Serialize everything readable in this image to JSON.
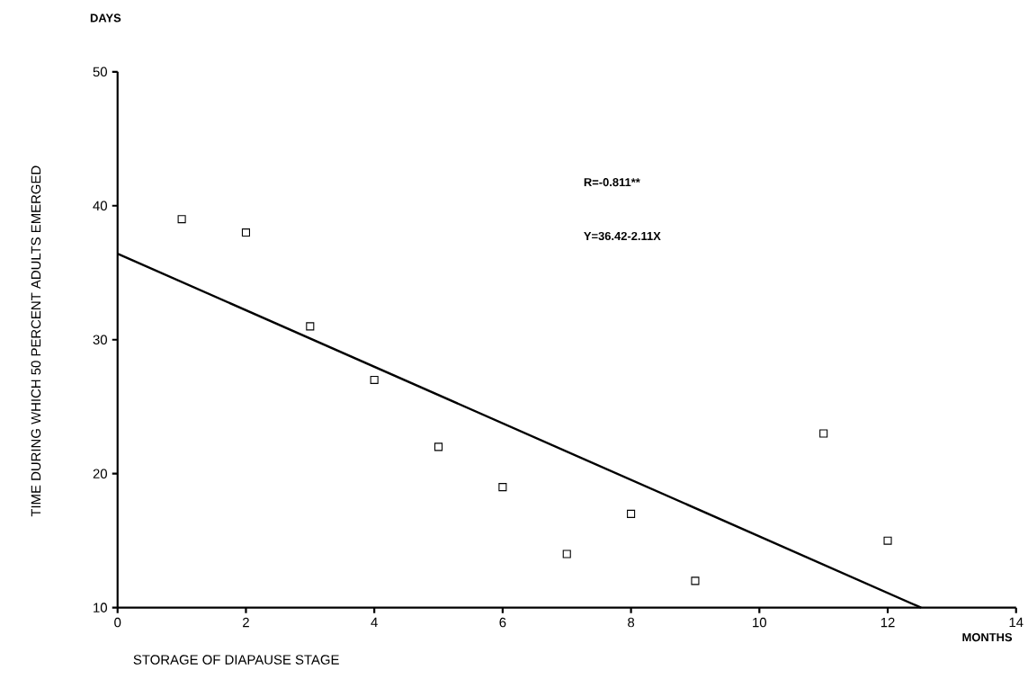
{
  "chart_data": {
    "type": "scatter",
    "xlabel": "STORAGE OF DIAPAUSE STAGE",
    "ylabel": "TIME DURING WHICH 50 PERCENT ADULTS EMERGED",
    "annotations": [
      "DAYS",
      "MONTHS",
      "R=-0.811**",
      "Y=36.42-2.11X"
    ],
    "series": [
      {
        "marker": "square",
        "color": "#000000",
        "x": [
          1,
          2,
          3,
          4,
          5,
          6,
          7,
          8,
          9,
          11,
          12
        ],
        "values": [
          39,
          38,
          31,
          27,
          22,
          19,
          14,
          17,
          12,
          23,
          15
        ]
      },
      {
        "type": "line",
        "color": "#000000",
        "x": [
          0,
          12.52
        ],
        "values": [
          36.42,
          10
        ]
      }
    ],
    "xlim": [
      0,
      14
    ],
    "ylim": [
      10,
      50
    ],
    "xticks": [
      0,
      2,
      4,
      6,
      8,
      10,
      12,
      14
    ],
    "yticks": [
      10,
      20,
      30,
      40,
      50
    ]
  }
}
